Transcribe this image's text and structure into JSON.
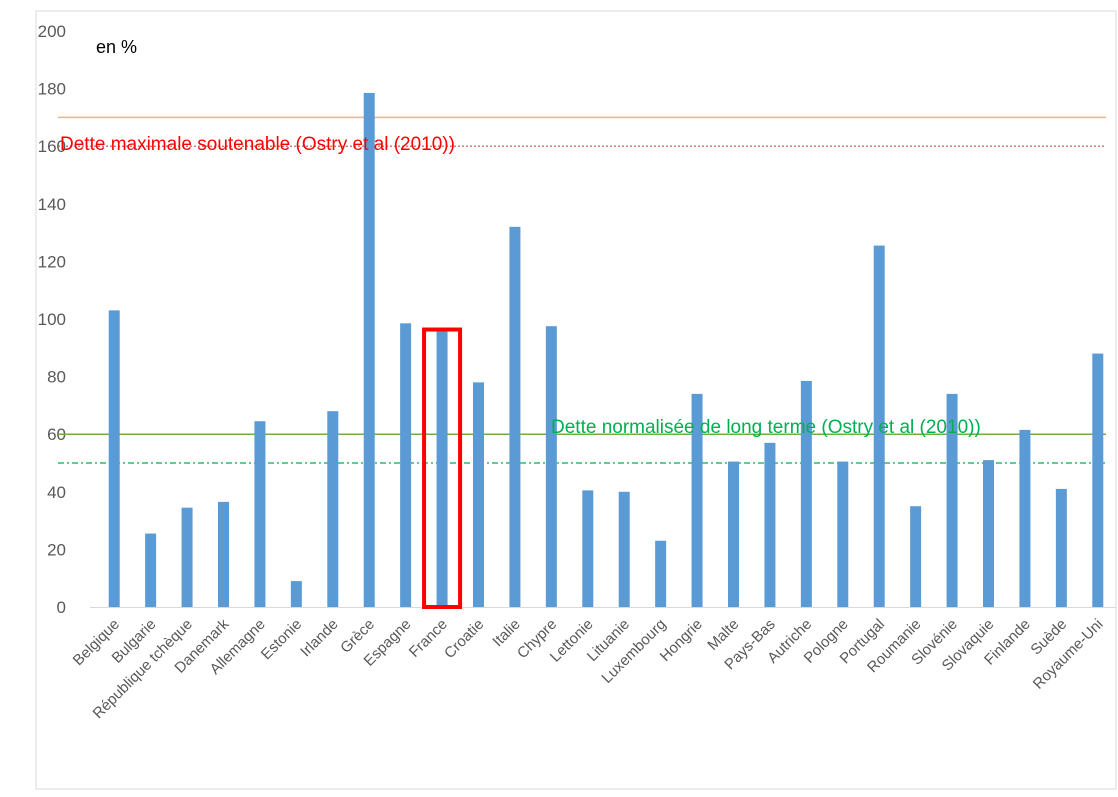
{
  "chart_data": {
    "type": "bar",
    "unit_label": "en %",
    "ylim": [
      0,
      200
    ],
    "yticks": [
      0,
      20,
      40,
      60,
      80,
      100,
      120,
      140,
      160,
      180,
      200
    ],
    "grid": false,
    "legend": "none",
    "categories": [
      "Belgique",
      "Bulgarie",
      "République tchèque",
      "Danemark",
      "Allemagne",
      "Estonie",
      "Irlande",
      "Grèce",
      "Espagne",
      "France",
      "Croatie",
      "Italie",
      "Chypre",
      "Lettonie",
      "Lituanie",
      "Luxembourg",
      "Hongrie",
      "Malte",
      "Pays-Bas",
      "Autriche",
      "Pologne",
      "Portugal",
      "Roumanie",
      "Slovénie",
      "Slovaquie",
      "Finlande",
      "Suède",
      "Royaume-Uni"
    ],
    "series": [
      {
        "values": [
          103,
          25.5,
          34.5,
          36.5,
          64.5,
          9,
          68,
          178.5,
          98.5,
          96,
          78,
          132,
          97.5,
          40.5,
          40,
          23,
          74,
          50.5,
          57,
          78.5,
          50.5,
          125.5,
          35,
          74,
          51,
          61.5,
          41,
          88
        ],
        "color": "#5b9bd5"
      }
    ],
    "highlighted_category": "France",
    "highlight_color": "#ff0000",
    "reference_lines": [
      {
        "value": 170,
        "color": "#f4b183",
        "style": "solid"
      },
      {
        "value": 160,
        "color": "#c0504d",
        "style": "dotted",
        "label": "Dette maximale soutenable (Ostry et al (2010))",
        "label_color": "#ff0000"
      },
      {
        "value": 60,
        "color": "#70ad47",
        "style": "solid"
      },
      {
        "value": 50,
        "color": "#00b050",
        "style": "dashdot",
        "label": "Dette normalisée de long terme (Ostry et al (2010))",
        "label_color": "#00b050"
      }
    ]
  }
}
